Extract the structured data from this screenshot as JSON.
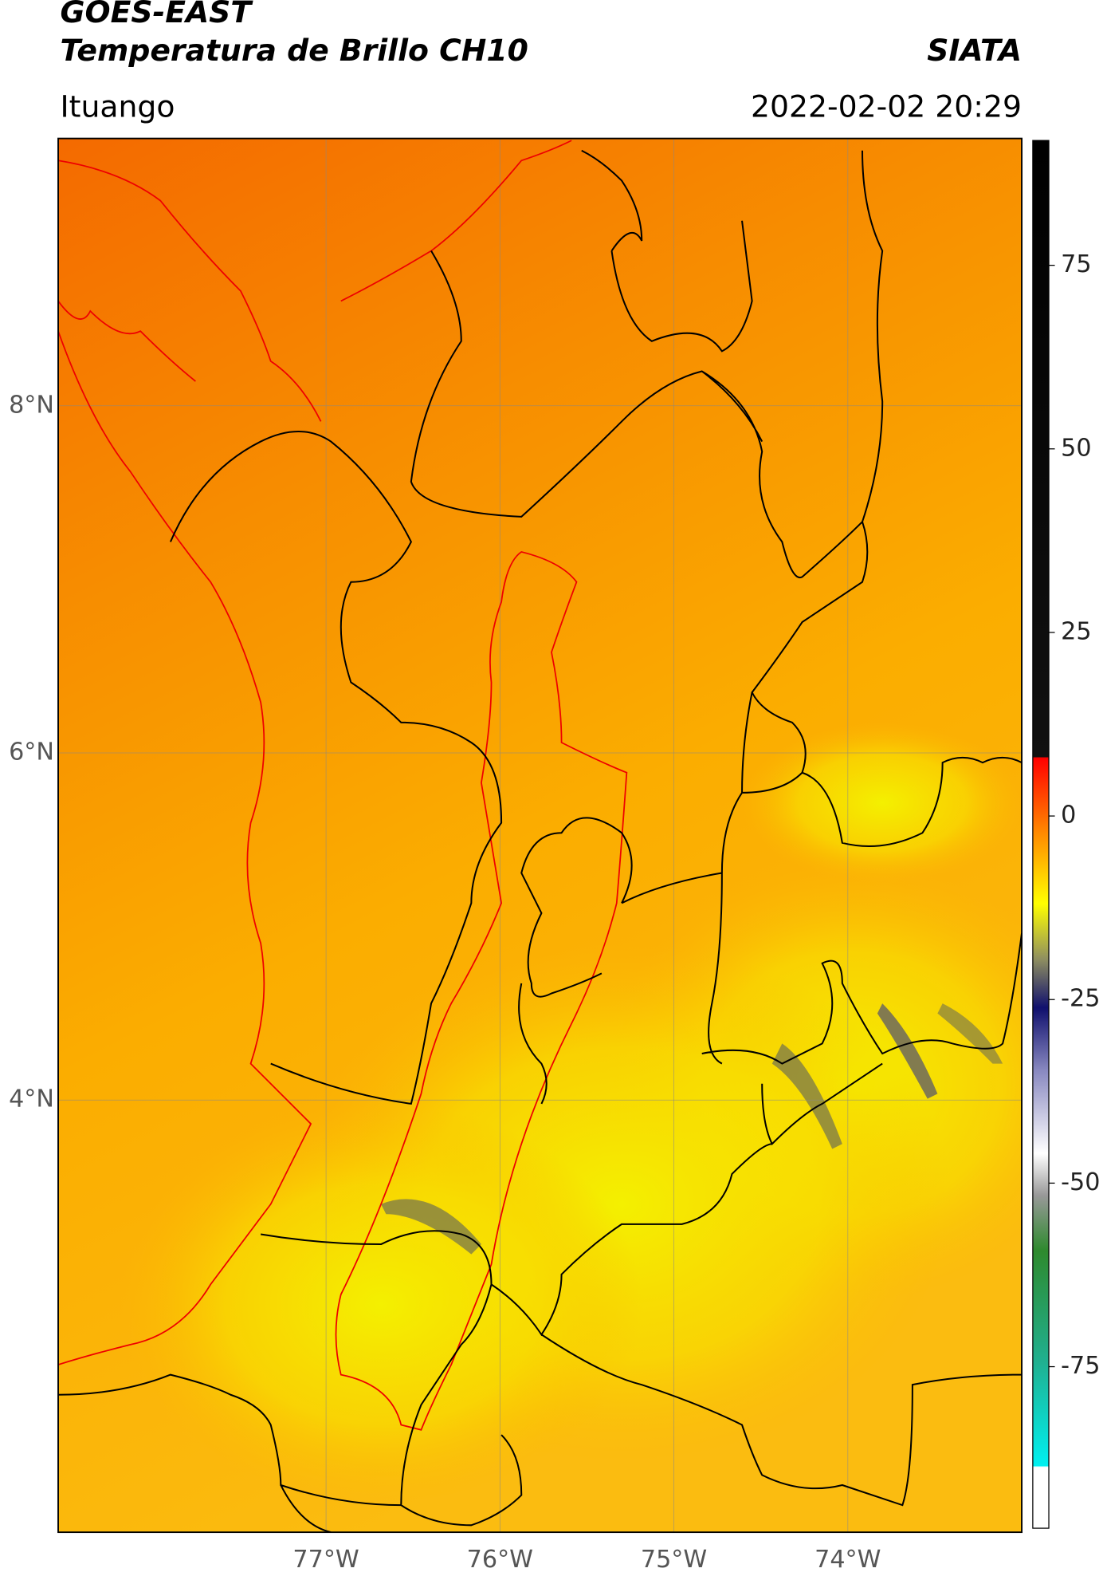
{
  "header": {
    "satellite": "GOES-EAST",
    "product": "Temperatura de Brillo CH10",
    "source": "SIATA",
    "region": "Ituango",
    "datetime": "2022-02-02 20:29"
  },
  "map": {
    "xlim": [
      -78.54,
      -73.0
    ],
    "ylim": [
      1.51,
      9.54
    ],
    "xticks": [
      {
        "value": -77,
        "label": "77°W"
      },
      {
        "value": -76,
        "label": "76°W"
      },
      {
        "value": -75,
        "label": "75°W"
      },
      {
        "value": -74,
        "label": "74°W"
      }
    ],
    "yticks": [
      {
        "value": 8,
        "label": "8°N"
      },
      {
        "value": 6,
        "label": "6°N"
      },
      {
        "value": 4,
        "label": "4°N"
      }
    ],
    "grid": true
  },
  "colorbar": {
    "lim": [
      -97,
      92
    ],
    "ticks": [
      75,
      50,
      25,
      0,
      -25,
      -50,
      -75
    ]
  }
}
